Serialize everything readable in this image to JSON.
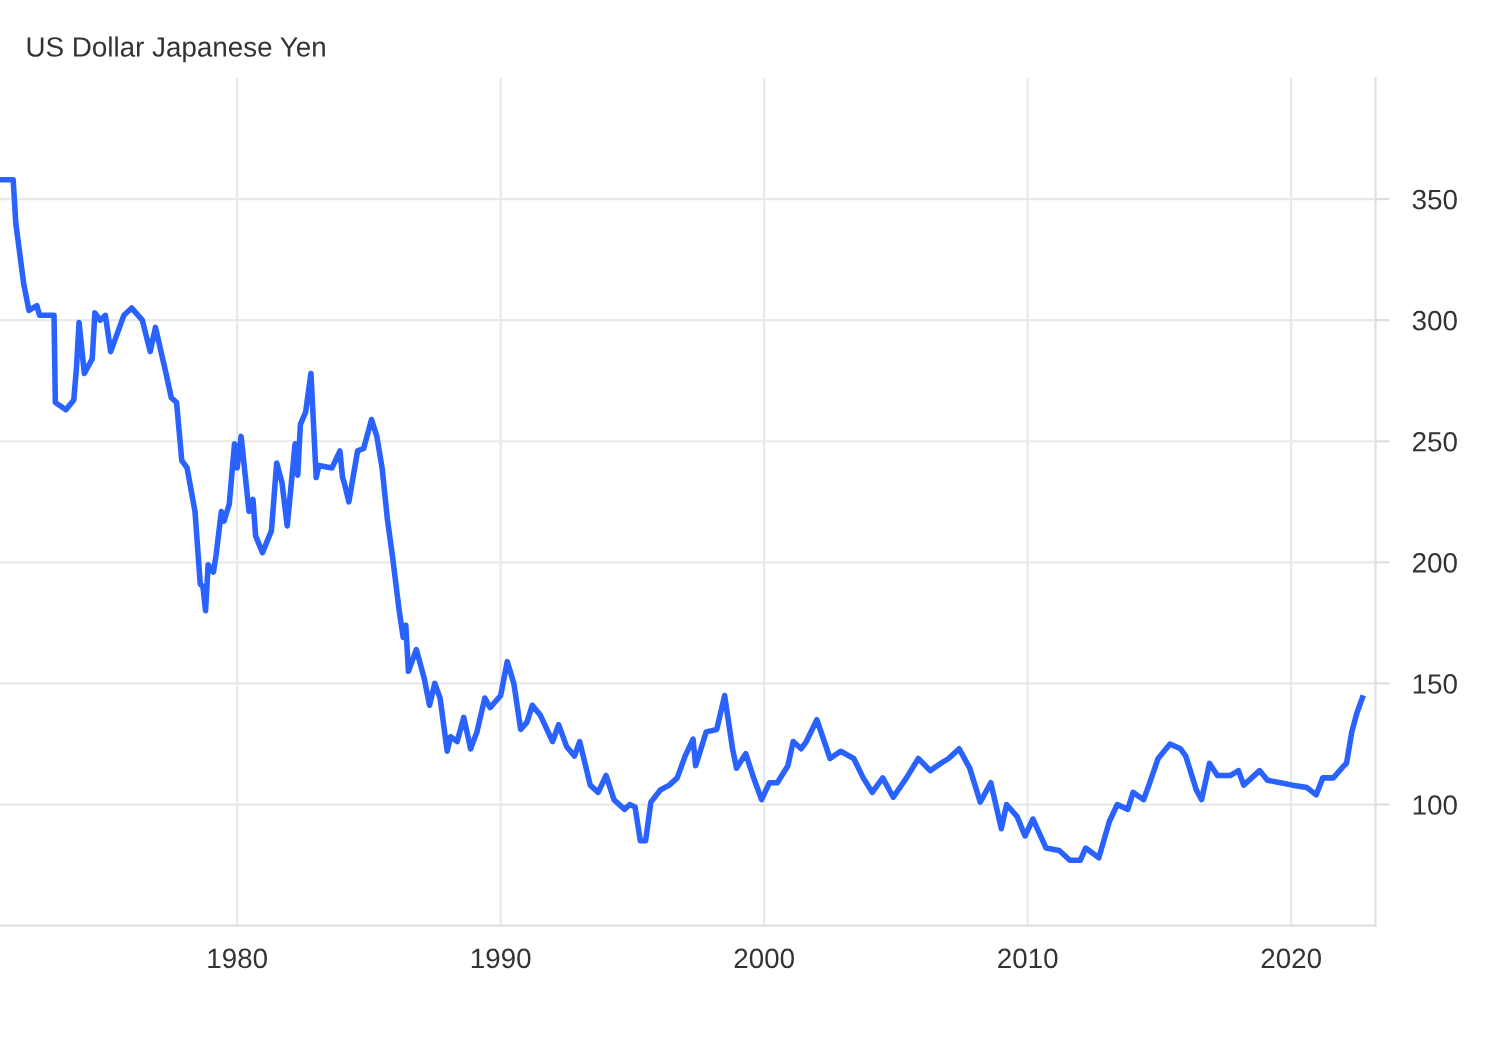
{
  "chart_data": {
    "type": "line",
    "title": "US Dollar Japanese Yen",
    "x": [
      1971.06,
      1971.5,
      1971.6,
      1971.9,
      1972.1,
      1972.4,
      1972.5,
      1973.05,
      1973.1,
      1973.5,
      1973.8,
      1973.9,
      1974.0,
      1974.2,
      1974.5,
      1974.6,
      1974.8,
      1975.0,
      1975.2,
      1975.4,
      1975.7,
      1976.0,
      1976.4,
      1976.7,
      1976.9,
      1977.3,
      1977.5,
      1977.7,
      1977.9,
      1978.1,
      1978.4,
      1978.6,
      1978.7,
      1978.8,
      1978.9,
      1979.1,
      1979.2,
      1979.4,
      1979.5,
      1979.7,
      1979.9,
      1980.0,
      1980.15,
      1980.45,
      1980.6,
      1980.7,
      1980.96,
      1981.3,
      1981.5,
      1981.7,
      1981.9,
      1982.2,
      1982.3,
      1982.4,
      1982.6,
      1982.8,
      1983.0,
      1983.1,
      1983.6,
      1983.9,
      1984.0,
      1984.06,
      1984.24,
      1984.57,
      1984.8,
      1985.1,
      1985.3,
      1985.5,
      1985.7,
      1985.9,
      1986.15,
      1986.3,
      1986.4,
      1986.5,
      1986.8,
      1987.1,
      1987.3,
      1987.5,
      1987.7,
      1987.97,
      1988.1,
      1988.35,
      1988.6,
      1988.86,
      1989.1,
      1989.4,
      1989.6,
      1990.0,
      1990.25,
      1990.5,
      1990.76,
      1991.0,
      1991.2,
      1991.5,
      1991.97,
      1992.2,
      1992.5,
      1992.8,
      1993.0,
      1993.4,
      1993.7,
      1994.0,
      1994.3,
      1994.7,
      1994.9,
      1995.1,
      1995.3,
      1995.5,
      1995.7,
      1996.06,
      1996.4,
      1996.7,
      1997.0,
      1997.3,
      1997.4,
      1997.8,
      1998.2,
      1998.5,
      1998.8,
      1998.95,
      1999.3,
      1999.6,
      1999.9,
      2000.2,
      2000.5,
      2000.9,
      2001.1,
      2001.4,
      2001.6,
      2002.0,
      2002.5,
      2002.9,
      2003.4,
      2003.76,
      2004.1,
      2004.5,
      2004.9,
      2005.4,
      2005.85,
      2006.3,
      2006.7,
      2007.0,
      2007.4,
      2007.8,
      2008.2,
      2008.6,
      2009.0,
      2009.2,
      2009.6,
      2009.9,
      2010.2,
      2010.7,
      2011.2,
      2011.6,
      2012.0,
      2012.2,
      2012.7,
      2013.1,
      2013.4,
      2013.8,
      2014.0,
      2014.4,
      2014.6,
      2014.95,
      2015.4,
      2015.8,
      2016.0,
      2016.4,
      2016.6,
      2016.9,
      2017.2,
      2017.7,
      2018.0,
      2018.2,
      2018.8,
      2019.1,
      2019.6,
      2020.05,
      2020.6,
      2020.95,
      2021.2,
      2021.6,
      2022.0,
      2022.1,
      2022.3,
      2022.4,
      2022.5,
      2022.7
    ],
    "series": [
      {
        "color": "#2962ff",
        "values": [
          358,
          358,
          340,
          315,
          304,
          306,
          302,
          302,
          266,
          263,
          267,
          280,
          299,
          278,
          284,
          303,
          300,
          302,
          287,
          293,
          302,
          305,
          300,
          287,
          297,
          278,
          268,
          266,
          242,
          239,
          221,
          191,
          190,
          180,
          199,
          196,
          203,
          221,
          217,
          224,
          249,
          239,
          252,
          221,
          226,
          211,
          204,
          213,
          241,
          233,
          215,
          249,
          236,
          257,
          262,
          278,
          235,
          240,
          239,
          246,
          235,
          233,
          225,
          246,
          247,
          259,
          252,
          239,
          218,
          202,
          180,
          169,
          174,
          155,
          164,
          152,
          141,
          150,
          144,
          122,
          128,
          126,
          136,
          123,
          130,
          144,
          140,
          145,
          159,
          150,
          131,
          134,
          141,
          137,
          126,
          133,
          124,
          120,
          126,
          108,
          105,
          112,
          102,
          98,
          100,
          99,
          85,
          85,
          101,
          106,
          108,
          111,
          120,
          127,
          116,
          130,
          131,
          145,
          123,
          115,
          121,
          111,
          102,
          109,
          109,
          116,
          126,
          123,
          126,
          135,
          119,
          122,
          119,
          111,
          105,
          111,
          103,
          111,
          119,
          114,
          117,
          119,
          123,
          115,
          101,
          109,
          90,
          100,
          95,
          87,
          94,
          82,
          81,
          77,
          77,
          82,
          78,
          93,
          100,
          98,
          105,
          102,
          108,
          119,
          125,
          123,
          120,
          106,
          102,
          117,
          112,
          112,
          114,
          108,
          114,
          110,
          109,
          108,
          107,
          104,
          111,
          111,
          116,
          117,
          130,
          134,
          138,
          144
        ]
      }
    ],
    "xlim": [
      1971.0,
      2023.2
    ],
    "ylim": [
      50,
      400
    ],
    "xticks": [
      1980,
      1990,
      2000,
      2010,
      2020
    ],
    "yticks": [
      100,
      150,
      200,
      250,
      300,
      350
    ],
    "grid": true,
    "line_style": "solid"
  }
}
